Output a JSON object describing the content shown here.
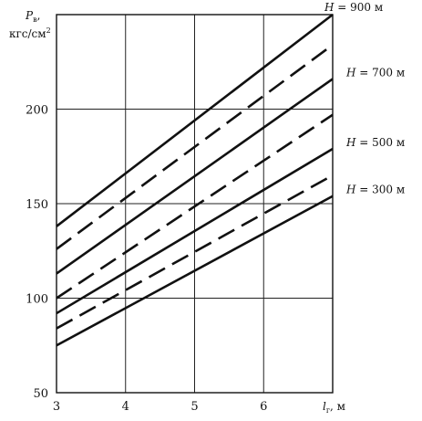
{
  "chart_data": {
    "type": "line",
    "ylabel": "P",
    "ylabel_sub": "в",
    "ylabel_tail": ",",
    "ylabel_unit": "кгс/см",
    "ylabel_unit_sup": "2",
    "xlabel": "l",
    "xlabel_sub": "г",
    "xlabel_tail": ", м",
    "xlim": [
      3,
      7
    ],
    "ylim": [
      50,
      250
    ],
    "xticks": [
      "3",
      "4",
      "5",
      "6"
    ],
    "xtick_values": [
      3,
      4,
      5,
      6
    ],
    "yticks": [
      "50",
      "100",
      "150",
      "200"
    ],
    "ytick_values": [
      50,
      100,
      150,
      200
    ],
    "grid": true,
    "series": [
      {
        "name": "H = 900 м",
        "style": "solid",
        "x": [
          3,
          7
        ],
        "y": [
          138,
          250
        ]
      },
      {
        "name": "",
        "style": "dashed",
        "x": [
          3,
          7
        ],
        "y": [
          126,
          234
        ]
      },
      {
        "name": "H = 700 м",
        "style": "solid",
        "x": [
          3,
          7
        ],
        "y": [
          113,
          216
        ]
      },
      {
        "name": "",
        "style": "dashed",
        "x": [
          3,
          7
        ],
        "y": [
          100,
          197
        ]
      },
      {
        "name": "H = 500 м",
        "style": "solid",
        "x": [
          3,
          7
        ],
        "y": [
          92,
          179
        ]
      },
      {
        "name": "",
        "style": "dashed",
        "x": [
          3,
          7
        ],
        "y": [
          84,
          165
        ]
      },
      {
        "name": "H = 300 м",
        "style": "solid",
        "x": [
          3,
          7
        ],
        "y": [
          75,
          154
        ]
      }
    ]
  }
}
